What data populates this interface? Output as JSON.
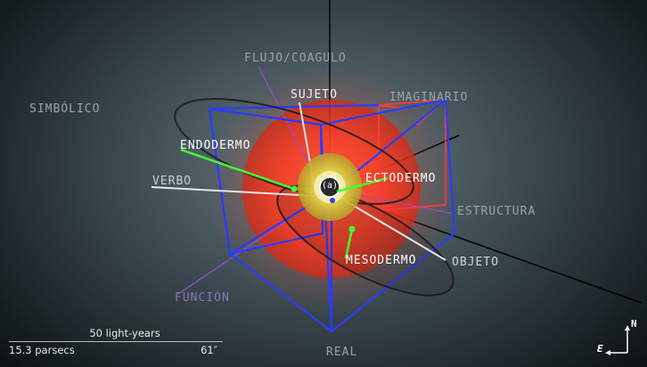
{
  "labels": {
    "flujo": "FLUJO/COAGULO",
    "sujeto": "SUJETO",
    "imaginario": "IMAGINARIO",
    "simbolico": "SIMBÓLICO",
    "endodermo": "ENDODERMO",
    "verbo": "VERBO",
    "ectodermo": "ECTODERMO",
    "estructura": "ESTRUCTURA",
    "mesodermo": "MESODERMO",
    "objeto": "OBJETO",
    "funcion": "FUNCIÓN",
    "real": "REAL",
    "center": "(a)"
  },
  "scale": {
    "light_years": "50 light-years",
    "parsecs": "15.3 parsecs",
    "arcsec": "61″"
  },
  "compass": {
    "north": "N",
    "east": "E"
  },
  "colors": {
    "cube": "#2a3cff",
    "cube_alt": "#ff3b3b",
    "sphere": "#ff3a22",
    "core": "#d8c640",
    "green": "#44ff33",
    "purple": "#9b4dca"
  }
}
